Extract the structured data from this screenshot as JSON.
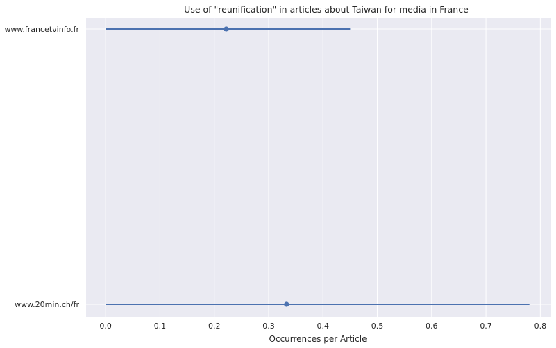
{
  "chart_data": {
    "type": "scatter",
    "style": "point-plot-with-error-bars",
    "title": "Use of \"reunification\" in articles about Taiwan for media in France",
    "xlabel": "Occurrences per Article",
    "ylabel": "",
    "xlim": [
      -0.036,
      0.82
    ],
    "xticks": [
      0.0,
      0.1,
      0.2,
      0.3,
      0.4,
      0.5,
      0.6,
      0.7,
      0.8
    ],
    "xtick_labels": [
      "0.0",
      "0.1",
      "0.2",
      "0.3",
      "0.4",
      "0.5",
      "0.6",
      "0.7",
      "0.8"
    ],
    "categories": [
      "www.francetvinfo.fr",
      "www.20min.ch/fr"
    ],
    "points": [
      {
        "category": "www.francetvinfo.fr",
        "mean": 0.222,
        "ci_low": 0.0,
        "ci_high": 0.45
      },
      {
        "category": "www.20min.ch/fr",
        "mean": 0.333,
        "ci_low": 0.0,
        "ci_high": 0.78
      }
    ],
    "grid": true,
    "colors": {
      "background": "#eaeaf2",
      "grid": "#ffffff",
      "series": "#4c72b0",
      "text": "#262626"
    }
  }
}
